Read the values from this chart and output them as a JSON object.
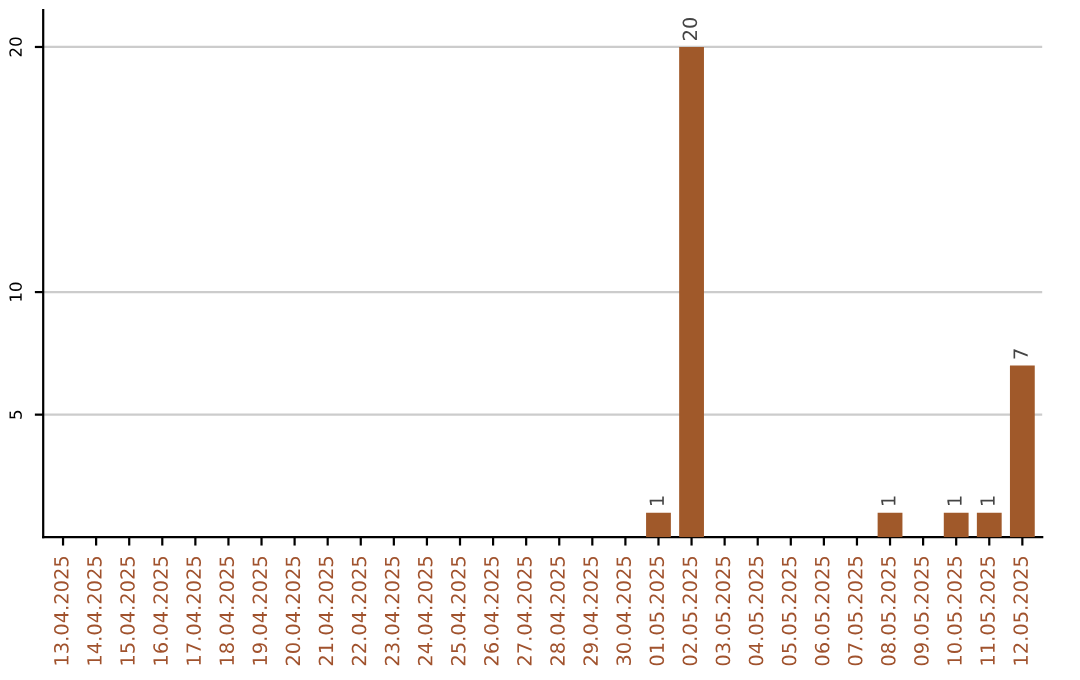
{
  "chart_data": {
    "type": "bar",
    "categories": [
      "13.04.2025",
      "14.04.2025",
      "15.04.2025",
      "16.04.2025",
      "17.04.2025",
      "18.04.2025",
      "19.04.2025",
      "20.04.2025",
      "21.04.2025",
      "22.04.2025",
      "23.04.2025",
      "24.04.2025",
      "25.04.2025",
      "26.04.2025",
      "27.04.2025",
      "28.04.2025",
      "29.04.2025",
      "30.04.2025",
      "01.05.2025",
      "02.05.2025",
      "03.05.2025",
      "04.05.2025",
      "05.05.2025",
      "06.05.2025",
      "07.05.2025",
      "08.05.2025",
      "09.05.2025",
      "10.05.2025",
      "11.05.2025",
      "12.05.2025"
    ],
    "values": [
      0,
      0,
      0,
      0,
      0,
      0,
      0,
      0,
      0,
      0,
      0,
      0,
      0,
      0,
      0,
      0,
      0,
      0,
      1,
      20,
      0,
      0,
      0,
      0,
      0,
      1,
      0,
      1,
      1,
      7
    ],
    "value_labels": [
      null,
      null,
      null,
      null,
      null,
      null,
      null,
      null,
      null,
      null,
      null,
      null,
      null,
      null,
      null,
      null,
      null,
      null,
      "1",
      "20",
      null,
      null,
      null,
      null,
      null,
      "1",
      null,
      "1",
      "1",
      "7"
    ],
    "color": "#a0592a",
    "ylim": [
      0,
      21.5
    ],
    "yticks": [
      5,
      10,
      20
    ],
    "grid": "y"
  }
}
